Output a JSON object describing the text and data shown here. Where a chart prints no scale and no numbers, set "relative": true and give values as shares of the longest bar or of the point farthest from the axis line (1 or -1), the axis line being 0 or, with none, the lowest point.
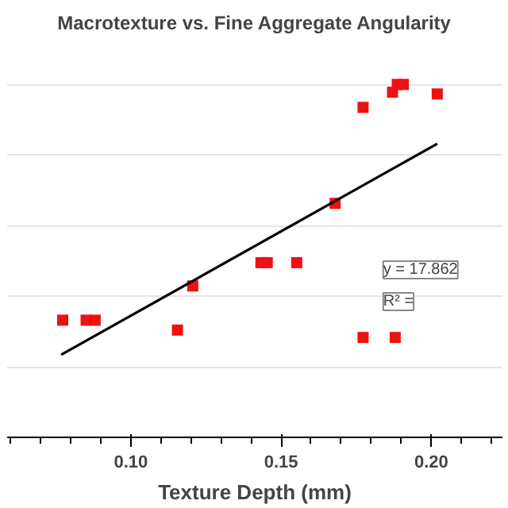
{
  "chart_data": {
    "type": "scatter",
    "title": "Macrotexture vs. Fine Aggregate Angularity",
    "xlabel": "Texture Depth (mm)",
    "relative": true,
    "xlim": [
      0.0588,
      0.2237
    ],
    "xticks": [
      {
        "value": 0.1,
        "label": "0.10"
      },
      {
        "value": 0.15,
        "label": "0.15"
      },
      {
        "value": 0.2,
        "label": "0.20"
      }
    ],
    "grid": "y",
    "annotations": [
      "y = 17.862",
      "R² ="
    ],
    "series": [
      {
        "marker": "square",
        "color": "#ee1111",
        "x": [
          0.0773,
          0.0851,
          0.0881,
          0.1155,
          0.1206,
          0.1433,
          0.1454,
          0.1552,
          0.168,
          0.1773,
          0.1773,
          0.188,
          0.1871,
          0.1887,
          0.1907,
          0.202
        ],
        "values": [
          0.332,
          0.332,
          0.332,
          0.304,
          0.429,
          0.495,
          0.495,
          0.495,
          0.663,
          0.935,
          0.283,
          0.283,
          0.978,
          1,
          1,
          0.973
        ]
      },
      {
        "type": "line",
        "color": "#000000",
        "x": [
          0.0768,
          0.202
        ],
        "values": [
          0.234,
          0.832
        ]
      }
    ]
  }
}
